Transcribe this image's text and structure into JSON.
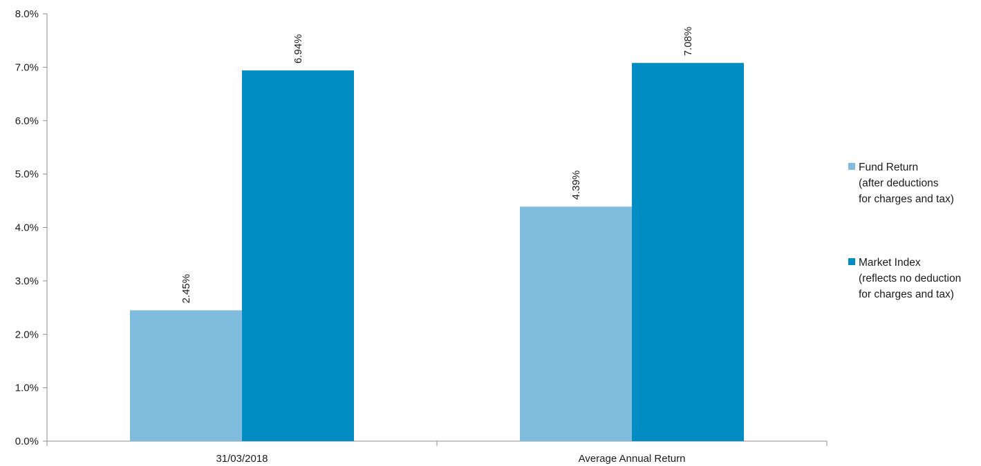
{
  "chart_data": {
    "type": "bar",
    "categories": [
      "31/03/2018",
      "Average Annual Return"
    ],
    "series": [
      {
        "name": "Fund Return (after deductions for charges and tax)",
        "legend_lines": [
          "Fund Return",
          "(after deductions",
          "for charges and tax)"
        ],
        "values": [
          2.45,
          4.39
        ],
        "labels": [
          "2.45%",
          "4.39%"
        ],
        "color": "#7fbcdd"
      },
      {
        "name": "Market Index (reflects no deduction for charges and tax)",
        "legend_lines": [
          "Market Index",
          "(reflects no deduction",
          "for charges and tax)"
        ],
        "values": [
          6.94,
          7.08
        ],
        "labels": [
          "6.94%",
          "7.08%"
        ],
        "color": "#008dc4"
      }
    ],
    "y_ticks": [
      "0.0%",
      "1.0%",
      "2.0%",
      "3.0%",
      "4.0%",
      "5.0%",
      "6.0%",
      "7.0%",
      "8.0%"
    ],
    "ylim": [
      0,
      8
    ],
    "grid": false,
    "legend_position": "right"
  }
}
